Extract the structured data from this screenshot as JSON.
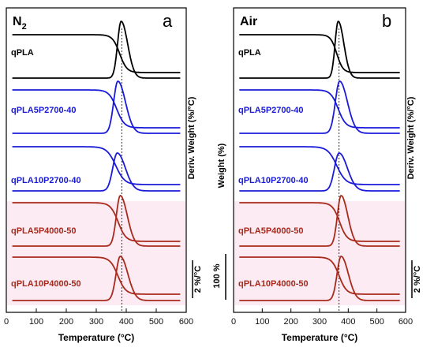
{
  "chart_data": [
    {
      "type": "line",
      "panel_title": "N",
      "panel_title_sub": "2",
      "panel_letter": "a",
      "xlabel": "Temperature (°C)",
      "ylabel_right": "Deriv. Weight (%/°C)",
      "scale_bar_label": "2 %/°C",
      "xlim": [
        0,
        600
      ],
      "x_ticks": [
        "0",
        "100",
        "200",
        "300",
        "400",
        "500",
        "600"
      ],
      "reference_line_x": 385,
      "series": [
        {
          "name": "qPLA",
          "color": "#000000",
          "tg_onset": 330,
          "tg_mid": 378,
          "dtg_peak": 383,
          "dtg_width": 12
        },
        {
          "name": "qPLA5P2700-40",
          "color": "#1a1adb",
          "tg_onset": 315,
          "tg_mid": 368,
          "dtg_peak": 372,
          "dtg_width": 14
        },
        {
          "name": "qPLA10P2700-40",
          "color": "#1a1adb",
          "tg_onset": 300,
          "tg_mid": 365,
          "dtg_peak": 370,
          "dtg_width": 15
        },
        {
          "name": "qPLA5P4000-50",
          "color": "#a82a1c",
          "tg_onset": 320,
          "tg_mid": 373,
          "dtg_peak": 380,
          "dtg_width": 13
        },
        {
          "name": "qPLA10P4000-50",
          "color": "#a82a1c",
          "tg_onset": 318,
          "tg_mid": 372,
          "dtg_peak": 380,
          "dtg_width": 14
        }
      ]
    },
    {
      "type": "line",
      "panel_title": "Air",
      "panel_letter": "b",
      "xlabel": "Temperature (°C)",
      "ylabel_left": "Weight (%)",
      "ylabel_right": "Deriv. Weight (%/°C)",
      "scale_bar_left_label": "100 %",
      "scale_bar_label": "2 %/°C",
      "xlim": [
        0,
        600
      ],
      "x_ticks": [
        "0",
        "100",
        "200",
        "300",
        "400",
        "500",
        "600"
      ],
      "reference_line_x": 368,
      "series": [
        {
          "name": "qPLA",
          "color": "#000000",
          "tg_onset": 320,
          "tg_mid": 360,
          "dtg_peak": 365,
          "dtg_width": 11
        },
        {
          "name": "qPLA5P2700-40",
          "color": "#1a1adb",
          "tg_onset": 310,
          "tg_mid": 365,
          "dtg_peak": 370,
          "dtg_width": 15
        },
        {
          "name": "qPLA10P2700-40",
          "color": "#1a1adb",
          "tg_onset": 290,
          "tg_mid": 360,
          "dtg_peak": 368,
          "dtg_width": 16
        },
        {
          "name": "qPLA5P4000-50",
          "color": "#a82a1c",
          "tg_onset": 318,
          "tg_mid": 370,
          "dtg_peak": 375,
          "dtg_width": 13
        },
        {
          "name": "qPLA10P4000-50",
          "color": "#a82a1c",
          "tg_onset": 315,
          "tg_mid": 368,
          "dtg_peak": 375,
          "dtg_width": 14
        }
      ]
    }
  ]
}
